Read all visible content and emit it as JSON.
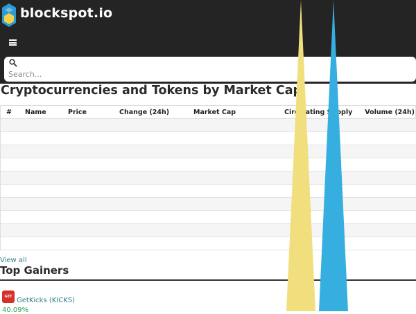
{
  "site": {
    "brand": "blockspot.io"
  },
  "search": {
    "placeholder": "Search..."
  },
  "page": {
    "title": "Cryptocurrencies and Tokens by Market Cap"
  },
  "table": {
    "headers": [
      "#",
      "Name",
      "Price",
      "Change (24h)",
      "Market Cap",
      "Circulating Supply",
      "Volume (24h)"
    ],
    "row_count": 10
  },
  "links": {
    "view_all": "View all"
  },
  "gainers": {
    "title": "Top Gainers",
    "items": [
      {
        "name": "GetKicks (KICKS)",
        "change": "40.09%",
        "icon_label": "GET KICKS"
      }
    ]
  },
  "colors": {
    "header_bg": "#242424",
    "link": "#2d7d8a",
    "gain": "#2fa04a",
    "cone_yellow": "#f1df7e",
    "cone_blue": "#36aee0"
  }
}
